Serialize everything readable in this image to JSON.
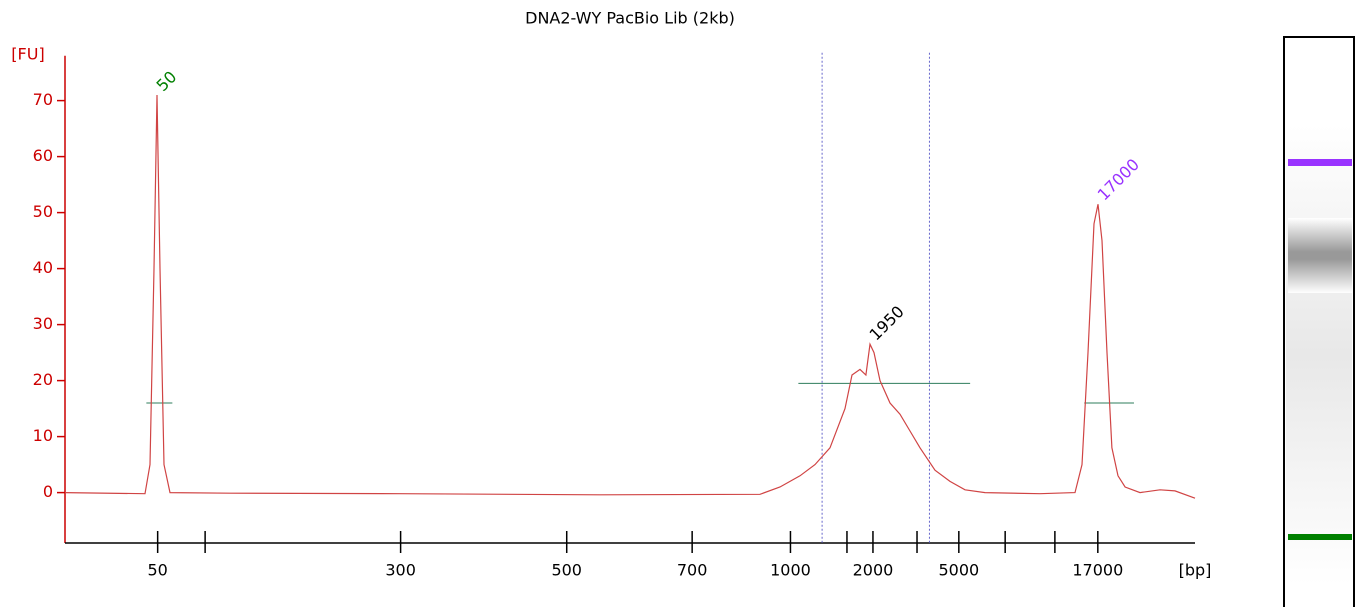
{
  "chart_data": {
    "type": "line",
    "title": "DNA2-WY PacBio Lib (2kb)",
    "y_label": "[FU]",
    "x_label": "[bp]",
    "color": "#d04444",
    "axis_color": "#cc0000",
    "x": [
      0,
      7.08,
      7.52,
      7.88,
      8.14,
      8.41,
      8.76,
      9.29,
      14.6,
      29.65,
      47.35,
      61.5,
      63.27,
      64.16,
      65.04,
      66.37,
      67.7,
      69.03,
      69.65,
      70.35,
      70.88,
      71.24,
      71.59,
      72.12,
      73.01,
      73.89,
      74.78,
      75.66,
      76.99,
      78.32,
      79.65,
      81.42,
      86.28,
      89.38,
      90.0,
      90.53,
      91.06,
      91.42,
      91.77,
      92.21,
      92.65,
      93.19,
      93.81,
      95.13,
      96.9,
      98.23,
      100
    ],
    "values": [
      0,
      -0.2,
      5,
      40,
      71,
      40,
      5,
      0,
      -0.1,
      -0.2,
      -0.4,
      -0.3,
      1,
      2,
      3,
      5,
      8,
      15,
      21,
      22,
      21,
      26.5,
      25,
      20,
      16,
      14,
      11,
      8,
      4,
      2,
      0.5,
      0,
      -0.2,
      0,
      5,
      25,
      48,
      51.5,
      45,
      25,
      8,
      3,
      1,
      0,
      0.5,
      0.3,
      -1
    ],
    "xlim": [
      0,
      100
    ],
    "ylim": [
      -9,
      78
    ],
    "yticks": [
      0,
      10,
      20,
      30,
      40,
      50,
      60,
      70
    ],
    "xticks": [
      {
        "value": 8.2,
        "label": "50"
      },
      {
        "value": 29.7,
        "label": "300"
      },
      {
        "value": 44.4,
        "label": "500"
      },
      {
        "value": 55.5,
        "label": "700"
      },
      {
        "value": 64.2,
        "label": "1000"
      },
      {
        "value": 71.5,
        "label": "2000"
      },
      {
        "value": 79.1,
        "label": "5000"
      },
      {
        "value": 91.4,
        "label": "17000"
      }
    ],
    "xticks_unlabeled": [
      12.4,
      69.2,
      75.4,
      83.2,
      87.6
    ],
    "region_bounds": [
      67.0,
      76.5
    ],
    "width_lines": [
      {
        "x": [
          7.2,
          9.5
        ],
        "y": 16
      },
      {
        "x": [
          64.9,
          80.1
        ],
        "y": 19.5
      },
      {
        "x": [
          90.2,
          94.6
        ],
        "y": 16
      }
    ],
    "peak_labels": [
      {
        "text": "50",
        "x": 8.14,
        "y": 71,
        "color": "#008000"
      },
      {
        "text": "1950",
        "x": 71.24,
        "y": 26.5,
        "color": "#000000"
      },
      {
        "text": "17000",
        "x": 91.42,
        "y": 51.5,
        "color": "#9933ff"
      }
    ]
  }
}
